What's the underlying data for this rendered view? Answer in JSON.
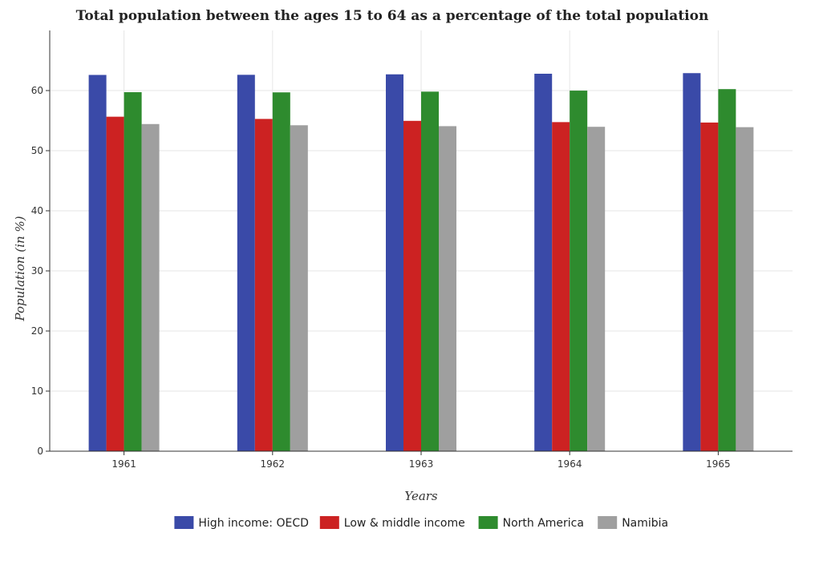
{
  "chart_data": {
    "type": "bar",
    "title": "Total population between the ages 15 to 64 as a percentage of the total population",
    "xlabel": "Years",
    "ylabel": "Population (in %)",
    "categories": [
      "1961",
      "1962",
      "1963",
      "1964",
      "1965"
    ],
    "ylim": [
      0,
      70
    ],
    "yticks": [
      0,
      10,
      20,
      30,
      40,
      50,
      60
    ],
    "grid": true,
    "legend_position": "bottom",
    "series": [
      {
        "name": "High income: OECD",
        "color": "#3a4aa8",
        "values": [
          62.6,
          62.62,
          62.7,
          62.8,
          62.9
        ]
      },
      {
        "name": "Low & middle income",
        "color": "#cc2222",
        "values": [
          55.65,
          55.28,
          54.96,
          54.75,
          54.68
        ]
      },
      {
        "name": "North America",
        "color": "#2e8b2e",
        "values": [
          59.73,
          59.7,
          59.82,
          59.99,
          60.24
        ]
      },
      {
        "name": "Namibia",
        "color": "#9f9f9f",
        "values": [
          54.43,
          54.23,
          54.08,
          53.97,
          53.91
        ]
      }
    ]
  }
}
